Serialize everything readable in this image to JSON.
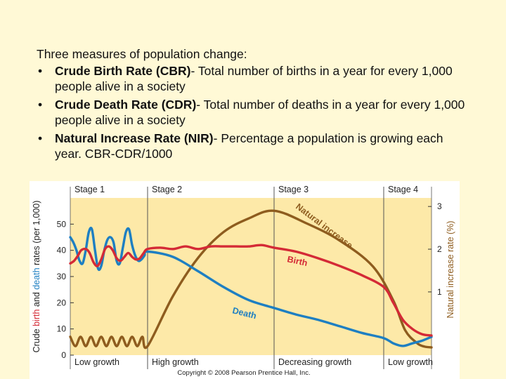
{
  "text": {
    "intro": "Three measures of population change:",
    "bullets": [
      {
        "term": "Crude Birth Rate (CBR)",
        "desc": "- Total number of births in a year for every 1,000 people alive in a society"
      },
      {
        "term": "Crude Death Rate (CDR)",
        "desc": "- Total number of deaths in a year for every 1,000 people alive in a society"
      },
      {
        "term": "Natural Increase Rate (NIR)",
        "desc": "- Percentage a population is growing each year.  CBR-CDR/1000"
      }
    ]
  },
  "chart_data": {
    "type": "line",
    "title": "",
    "stages": [
      "Stage 1",
      "Stage 2",
      "Stage 3",
      "Stage 4"
    ],
    "stage_bounds": [
      0,
      1,
      2,
      3,
      4
    ],
    "growth_labels": [
      "Low growth",
      "High growth",
      "Decreasing growth",
      "Low growth"
    ],
    "ylabel_left": {
      "prefix": "Crude ",
      "birth": "birth",
      "and": " and ",
      "death": "death",
      "suffix": " rates (per 1,000)"
    },
    "ylabel_right": "Natural increase rate (%)",
    "yticks_left": [
      0,
      10,
      20,
      30,
      40,
      50
    ],
    "ylim_left": [
      0,
      60
    ],
    "yticks_right": [
      1,
      2,
      3
    ],
    "ylim_right": [
      -0.48,
      3.2
    ],
    "series": [
      {
        "name": "Birth",
        "axis": "left",
        "color": "#d42a36",
        "x": [
          0,
          0.05,
          0.1,
          0.14,
          0.2,
          0.25,
          0.3,
          0.35,
          0.4,
          0.45,
          0.5,
          0.55,
          0.6,
          0.65,
          0.7,
          0.75,
          0.8,
          0.85,
          0.9,
          0.95,
          1.0,
          1.1,
          1.2,
          1.3,
          1.4,
          1.5,
          1.6,
          1.7,
          1.8,
          1.9,
          2.0,
          2.2,
          2.4,
          2.6,
          2.8,
          3.0,
          3.2,
          3.4,
          3.6,
          3.8,
          4.0
        ],
        "values": [
          35,
          36,
          38,
          40,
          40.5,
          39,
          35.5,
          34,
          36.5,
          40.5,
          41.5,
          40,
          37,
          36,
          37.5,
          39,
          37.5,
          36.5,
          37,
          39,
          40.5,
          41,
          40.5,
          41.5,
          40.5,
          41.5,
          41.5,
          41.5,
          41.5,
          42,
          41,
          39.5,
          37,
          34,
          30.5,
          26,
          20,
          13.5,
          10,
          8,
          7.5
        ]
      },
      {
        "name": "Death",
        "axis": "left",
        "color": "#1e7fc2",
        "x": [
          0,
          0.04,
          0.08,
          0.12,
          0.16,
          0.2,
          0.24,
          0.28,
          0.32,
          0.36,
          0.4,
          0.44,
          0.48,
          0.52,
          0.56,
          0.6,
          0.64,
          0.68,
          0.72,
          0.76,
          0.8,
          0.84,
          0.88,
          0.92,
          0.96,
          1.0,
          1.2,
          1.4,
          1.6,
          1.8,
          2.0,
          2.2,
          2.4,
          2.6,
          2.8,
          3.0,
          3.2,
          3.4,
          3.6,
          3.8,
          4.0
        ],
        "values": [
          45,
          43,
          40,
          36,
          35,
          40,
          47,
          48,
          40,
          33,
          34,
          40,
          44,
          45,
          43,
          36,
          35,
          41,
          47,
          48,
          42,
          38,
          36,
          36.5,
          38,
          39.5,
          37.5,
          32,
          26,
          21,
          18,
          15.5,
          13.5,
          11,
          8.5,
          6.5,
          4.5,
          3.5,
          4.5,
          5.5,
          7
        ]
      },
      {
        "name": "Natural increase",
        "axis": "right",
        "color": "#8e5c1e",
        "x": [
          0,
          0.067,
          0.133,
          0.2,
          0.267,
          0.333,
          0.4,
          0.467,
          0.533,
          0.6,
          0.667,
          0.733,
          0.8,
          0.867,
          0.933,
          1.0,
          1.2,
          1.4,
          1.6,
          1.8,
          2.0,
          2.3,
          2.6,
          2.9,
          3.2,
          3.45,
          3.7,
          3.85,
          4.0
        ],
        "values": [
          -0.05,
          -0.27,
          -0.05,
          -0.27,
          -0.05,
          -0.27,
          -0.05,
          -0.27,
          -0.05,
          -0.27,
          -0.05,
          -0.27,
          -0.05,
          -0.27,
          -0.05,
          -0.27,
          0.9,
          1.8,
          2.4,
          2.72,
          2.9,
          2.6,
          2.2,
          1.6,
          0.8,
          0.1,
          -0.2,
          -0.28,
          -0.3
        ]
      }
    ],
    "annotations": [
      "Natural increase",
      "Birth",
      "Death"
    ],
    "copyright": "Copyright © 2008 Pearson Prentice Hall, Inc.",
    "colors": {
      "panel": "#fde9a8",
      "birth": "#d42a36",
      "death": "#1e7fc2",
      "natural_increase": "#8e5c1e",
      "divider": "#555555"
    }
  }
}
